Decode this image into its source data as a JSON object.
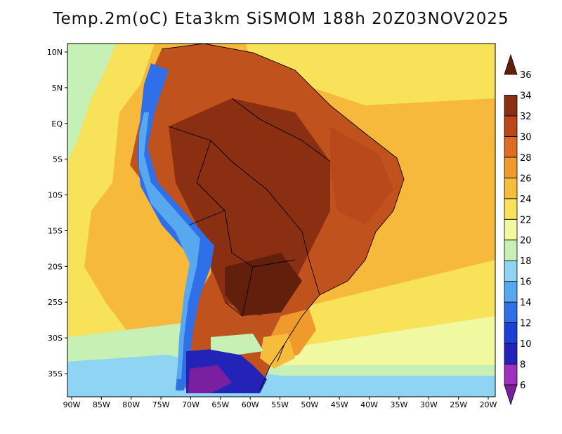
{
  "title": "Temp.2m(oC) Eta3km SiSMOM 188h 20Z03NOV2025",
  "lon_labels": [
    "90W",
    "85W",
    "80W",
    "75W",
    "70W",
    "65W",
    "60W",
    "55W",
    "50W",
    "45W",
    "40W",
    "35W",
    "30W",
    "25W",
    "20W"
  ],
  "lat_labels": [
    "10N",
    "5N",
    "EQ",
    "5S",
    "10S",
    "15S",
    "20S",
    "25S",
    "30S",
    "35S"
  ],
  "colorbar": {
    "labels": [
      "6",
      "8",
      "10",
      "12",
      "14",
      "16",
      "18",
      "20",
      "22",
      "24",
      "26",
      "28",
      "30",
      "32",
      "34",
      "36"
    ],
    "colors": [
      "#7a1fa0",
      "#a12fc0",
      "#2323b8",
      "#1c3fd6",
      "#2f6fe8",
      "#58a8f0",
      "#8fd4f2",
      "#c6f0b4",
      "#f0f8a0",
      "#f7e25a",
      "#f6bd3c",
      "#f09a2e",
      "#de6c22",
      "#b9491b",
      "#8a2f12",
      "#62200c"
    ]
  },
  "map": {
    "region_colors": {
      "ocean_warm": "#f6b93c",
      "ocean_mid": "#f7e25a",
      "ocean_cool": "#f0f8a0",
      "land_hot": "#8a2f12",
      "land_warm": "#c0531d",
      "andes_cold": "#2f6fe8",
      "patagonia_cold": "#7a1fa0"
    }
  }
}
